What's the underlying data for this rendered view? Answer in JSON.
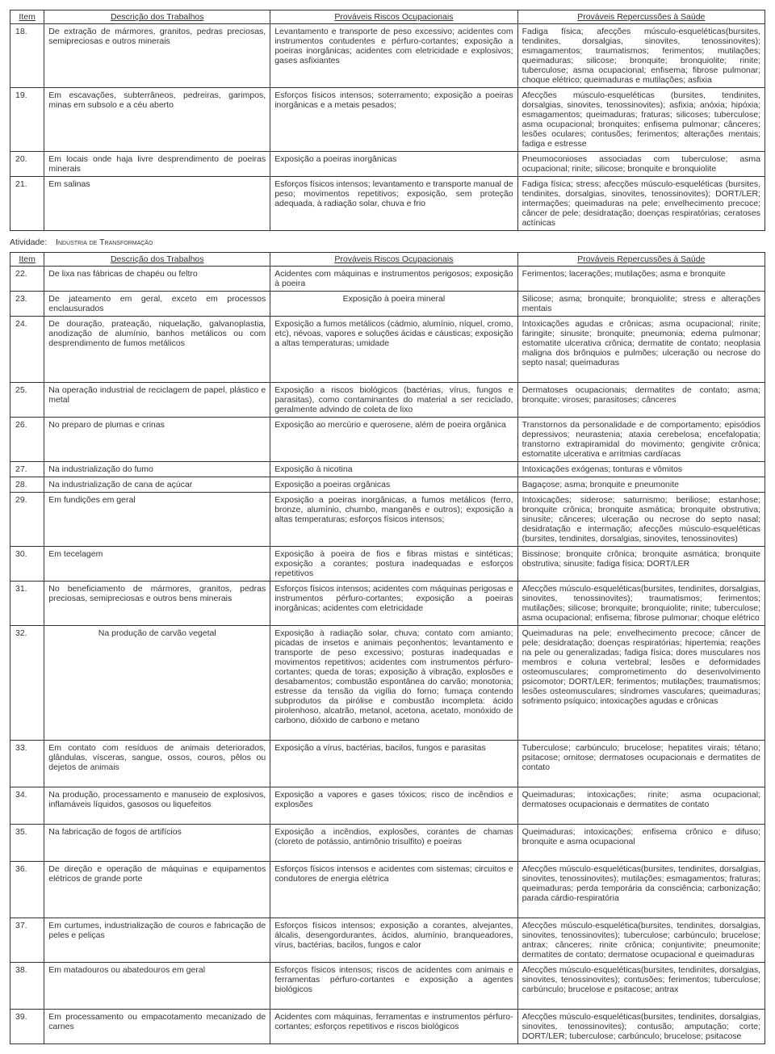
{
  "headers": {
    "item": "Item",
    "descricao": "Descrição dos Trabalhos",
    "riscos": "Prováveis Riscos Ocupacionais",
    "saude": "Prováveis Repercussões à Saúde"
  },
  "activity": {
    "label": "Atividade:",
    "value": "Indústria de Transformação"
  },
  "table1": [
    {
      "num": "18.",
      "desc": "De extração de mármores, granitos, pedras preciosas, semipreciosas e outros minerais",
      "risk": "Levantamento e transporte de peso excessivo; acidentes com instrumentos contudentes e pérfuro-cortantes; exposição a poeiras inorgânicas; acidentes com eletricidade e explosivos; gases asfixiantes",
      "saude": "Fadiga física; afecções músculo-esqueléticas(bursites, tendinites, dorsalgias, sinovites, tenossinovites); esmagamentos; traumatismos; ferimentos; mutilações; queimaduras; silicose; bronquite; bronquiolite; rinite; tuberculose; asma ocupacional; enfisema; fibrose pulmonar; choque elétrico; queimaduras e mutilações; asfixia"
    },
    {
      "num": "19.",
      "desc": "Em escavações, subterrâneos, pedreiras, garimpos, minas em subsolo e a céu aberto",
      "risk": "Esforços físicos intensos; soterramento; exposição a poeiras inorgânicas e a metais pesados;",
      "saude": "Afecções músculo-esqueléticas (bursites, tendinites, dorsalgias, sinovites, tenossinovites); asfixia; anóxia; hipóxia; esmagamentos; queimaduras; fraturas; silicoses; tuberculose; asma ocupacional; bronquites; enfisema pulmonar; cânceres; lesões oculares; contusões; ferimentos; alterações mentais; fadiga e estresse"
    },
    {
      "num": "20.",
      "desc": "Em locais onde haja livre desprendimento de poeiras minerais",
      "risk": "Exposição a poeiras inorgânicas",
      "saude": "Pneumoconioses associadas com tuberculose; asma ocupacional; rinite; silicose; bronquite e bronquiolite"
    },
    {
      "num": "21.",
      "desc": "Em salinas",
      "risk": "Esforços físicos intensos; levantamento e transporte manual de peso; movimentos repetitivos; exposição, sem proteção adequada, à radiação solar, chuva e frio",
      "saude": "Fadiga física; stress; afecções músculo-esqueléticas (bursites, tendinites, dorsalgias, sinovites, tenossinovites); DORT/LER; intermações; queimaduras na pele; envelhecimento precoce; câncer de pele; desidratação; doenças respiratórias; ceratoses actínicas"
    }
  ],
  "table2": [
    {
      "num": "22.",
      "desc": "De lixa nas fábricas de chapéu ou feltro",
      "risk": "Acidentes com máquinas e instrumentos perigosos; exposição à poeira",
      "saude": "Ferimentos; lacerações; mutilações; asma e bronquite"
    },
    {
      "num": "23.",
      "desc": "De jateamento em geral, exceto em processos enclausurados",
      "risk": "Exposição à poeira mineral",
      "riskCenter": true,
      "saude": "Silicose; asma; bronquite; bronquiolite; stress e alterações mentais"
    },
    {
      "num": "24.",
      "desc": "De douração, prateação, niquelação, galvanoplastia, anodização de alumínio, banhos metálicos ou com desprendimento de fumos metálicos",
      "risk": "Exposição a fumos metálicos (cádmio, alumínio, níquel, cromo, etc), névoas, vapores e soluções ácidas e cáusticas; exposição a altas temperaturas; umidade",
      "saude": "Intoxicações agudas e crônicas; asma ocupacional; rinite; faringite; sinusite; bronquite; pneumonia; edema pulmonar; estomatite ulcerativa crônica; dermatite de contato; neoplasia maligna dos brônquios e pulmões; ulceração ou necrose do septo nasal; queimaduras",
      "extraSpace": true
    },
    {
      "num": "25.",
      "desc": "Na operação industrial de reciclagem de papel, plástico e metal",
      "risk": "Exposição a riscos biológicos (bactérias, vírus, fungos e parasitas), como contaminantes do material a ser reciclado, geralmente advindo de coleta de lixo",
      "saude": "Dermatoses ocupacionais; dermatites de contato; asma; bronquite; viroses; parasitoses; cânceres"
    },
    {
      "num": "26.",
      "desc": "No preparo de plumas e crinas",
      "risk": "Exposição ao mercúrio e querosene, além de poeira orgânica",
      "saude": "Transtornos da personalidade e de comportamento; episódios depressivos; neurastenia; ataxia cerebelosa; encefalopatia; transtorno extrapiramidal do movimento; gengivite crônica; estomatite ulcerativa e arritmias cardíacas"
    },
    {
      "num": "27.",
      "desc": "Na industrialização do fumo",
      "risk": "Exposição à nicotina",
      "saude": "Intoxicações exógenas; tonturas e vômitos"
    },
    {
      "num": "28.",
      "desc": "Na industrialização de cana de açúcar",
      "risk": "Exposição a poeiras orgânicas",
      "saude": "Bagaçose; asma; bronquite e pneumonite"
    },
    {
      "num": "29.",
      "desc": "Em fundições em geral",
      "risk": "Exposição a poeiras inorgânicas, a fumos metálicos (ferro, bronze, alumínio, chumbo, manganês e outros); exposição a altas temperaturas; esforços físicos intensos;",
      "saude": "Intoxicações; siderose; saturnismo; beriliose; estanhose; bronquite crônica; bronquite asmática; bronquite obstrutiva; sinusite; cânceres; ulceração ou necrose do septo nasal; desidratação e intermação; afecções músculo-esqueléticas (bursites, tendinites, dorsalgias, sinovites, tenossinovites)"
    },
    {
      "num": "30.",
      "desc": "Em tecelagem",
      "risk": "Exposição à poeira de fios e fibras mistas e sintéticas; exposição a corantes; postura inadequadas e esforços repetitivos",
      "saude": "Bissinose; bronquite crônica; bronquite asmática; bronquite obstrutiva; sinusite; fadiga física; DORT/LER"
    },
    {
      "num": "31.",
      "desc": "No beneficiamento de mármores, granitos, pedras preciosas, semipreciosas e outros bens minerais",
      "risk": "Esforços físicos intensos; acidentes com máquinas perigosas e instrumentos pérfuro-cortantes; exposição a poeiras inorgânicas; acidentes com eletricidade",
      "saude": "Afecções músculo-esqueléticas(bursites, tendinites, dorsalgias, sinovites, tenossinovites); traumatismos; ferimentos; mutilações; silicose; bronquite; bronquiolite; rinite; tuberculose; asma ocupacional; enfisema; fibrose pulmonar; choque elétrico"
    },
    {
      "num": "32.",
      "desc": "Na produção de carvão vegetal",
      "descCenter": true,
      "risk": "Exposição à radiação solar, chuva; contato com amianto; picadas de insetos e animais peçonhentos; levantamento e transporte de peso excessivo; posturas inadequadas e movimentos repetitivos; acidentes com instrumentos pérfuro-cortantes; queda de toras; exposição à vibração, explosões e desabamentos; combustão espontânea do carvão; monotonia; estresse da tensão da vigília do forno; fumaça contendo subprodutos da pirólise e combustão incompleta: ácido pirolenhoso, alcatrão, metanol, acetona, acetato, monóxido de carbono, dióxido de carbono e metano",
      "saude": "Queimaduras na pele; envelhecimento precoce; câncer de pele; desidratação; doenças respiratórias; hipertemia; reações na pele ou generalizadas; fadiga física; dores musculares nos membros e coluna vertebral; lesões e deformidades osteomusculares; comprometimento do desenvolvimento psicomotor; DORT/LER; ferimentos; mutilações; traumatismos; lesões osteomusculares; síndromes vasculares; queimaduras; sofrimento psíquico; intoxicações agudas e crônicas",
      "extraSpace": true
    },
    {
      "num": "33.",
      "desc": "Em contato com resíduos de animais deteriorados, glândulas, vísceras, sangue, ossos, couros, pêlos ou dejetos de animais",
      "risk": "Exposição a vírus, bactérias, bacilos, fungos e parasitas",
      "saude": "Tuberculose; carbúnculo; brucelose; hepatites virais; tétano; psitacose; ornitose; dermatoses ocupacionais e dermatites de contato",
      "extraSpace": true
    },
    {
      "num": "34.",
      "desc": "Na produção, processamento e manuseio de explosivos, inflamáveis líquidos, gasosos ou liquefeitos",
      "risk": "Exposição a vapores e gases tóxicos; risco de incêndios e explosões",
      "saude": "Queimaduras; intoxicações; rinite; asma ocupacional; dermatoses ocupacionais e dermatites de contato",
      "extraSpace": true
    },
    {
      "num": "35.",
      "desc": "Na fabricação de fogos de artifícios",
      "risk": "Exposição a incêndios, explosões, corantes de chamas (cloreto de potássio, antimônio trisulfito) e poeiras",
      "saude": "Queimaduras; intoxicações; enfisema crônico e difuso; bronquite e asma ocupacional",
      "extraSpace": true
    },
    {
      "num": "36.",
      "desc": "De direção e operação de máquinas e equipamentos elétricos de grande porte",
      "risk": "Esforços físicos intensos e acidentes com sistemas; circuitos e condutores de energia elétrica",
      "saude": "Afecções músculo-esqueléticas(bursites, tendinites, dorsalgias, sinovites, tenossinovites); mutilações; esmagamentos; fraturas; queimaduras; perda temporária da consciência; carbonização; parada cárdio-respiratória",
      "extraSpace": true
    },
    {
      "num": "37.",
      "desc": "Em curtumes, industrialização de couros e fabricação de peles e peliças",
      "risk": "Esforços físicos intensos; exposição a corantes, alvejantes, álcalis, desengordurantes, ácidos, alumínio, branqueadores, vírus, bactérias, bacilos, fungos e calor",
      "saude": "Afecções músculo-esquelética(bursites, tendinites, dorsalgias, sinovites, tenossinovites); tuberculose; carbúnculo; brucelose; antrax; cânceres; rinite crônica; conjuntivite; pneumonite; dermatites de contato; dermatose ocupacional e queimaduras"
    },
    {
      "num": "38.",
      "desc": "Em matadouros ou abatedouros em geral",
      "risk": "Esforços físicos intensos; riscos de acidentes com animais e ferramentas pérfuro-cortantes e exposição a agentes biológicos",
      "saude": "Afecções músculo-esqueléticas(bursites, tendinites, dorsalgias, sinovites, tenossinovites); contusões; ferimentos; tuberculose; carbúnculo; brucelose e psitacose; antrax",
      "extraSpace": true
    },
    {
      "num": "39.",
      "desc": "Em processamento ou empacotamento mecanizado de carnes",
      "risk": "Acidentes com máquinas, ferramentas e instrumentos pérfuro-cortantes; esforços repetitivos e riscos biológicos",
      "saude": "Afecções músculo-esqueléticas(bursites, tendinites, dorsalgias, sinovites, tenossinovites); contusão; amputação; corte; DORT/LER; tuberculose; carbúnculo; brucelose; psitacose"
    }
  ]
}
